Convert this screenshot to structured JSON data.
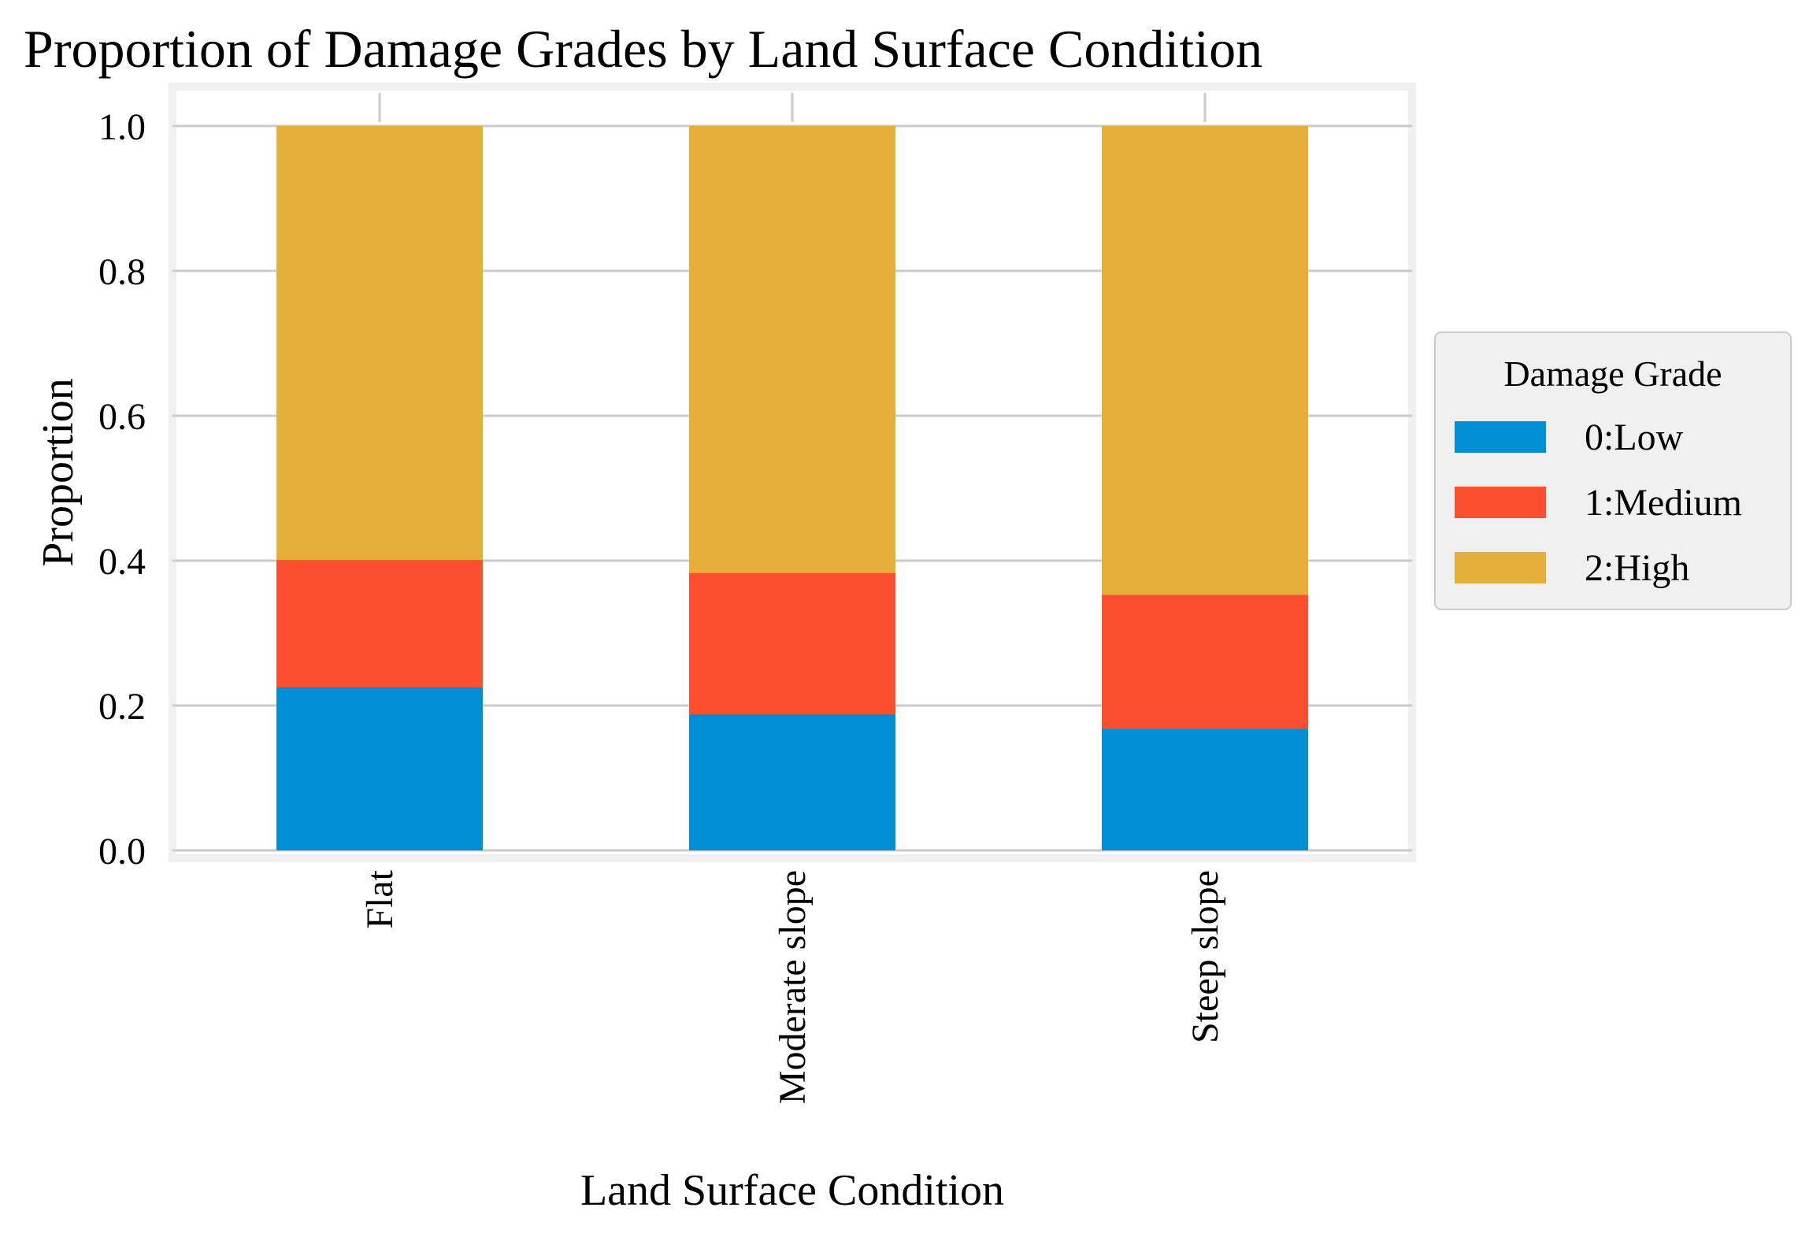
{
  "chart_data": {
    "type": "bar",
    "stacked": true,
    "title": "Proportion of Damage Grades by Land Surface Condition",
    "xlabel": "Land Surface Condition",
    "ylabel": "Proportion",
    "categories": [
      "Flat",
      "Moderate slope",
      "Steep slope"
    ],
    "series": [
      {
        "name": "0:Low",
        "color": "#008fd5",
        "values": [
          0.225,
          0.188,
          0.168
        ]
      },
      {
        "name": "1:Medium",
        "color": "#fc4f30",
        "values": [
          0.176,
          0.195,
          0.185
        ]
      },
      {
        "name": "2:High",
        "color": "#e5ae38",
        "values": [
          0.599,
          0.617,
          0.647
        ]
      }
    ],
    "ylim": [
      0,
      1.0
    ],
    "yticks": [
      "0.0",
      "0.2",
      "0.4",
      "0.6",
      "0.8",
      "1.0"
    ],
    "grid": true,
    "legend": {
      "title": "Damage Grade",
      "position": "outside-right"
    }
  }
}
